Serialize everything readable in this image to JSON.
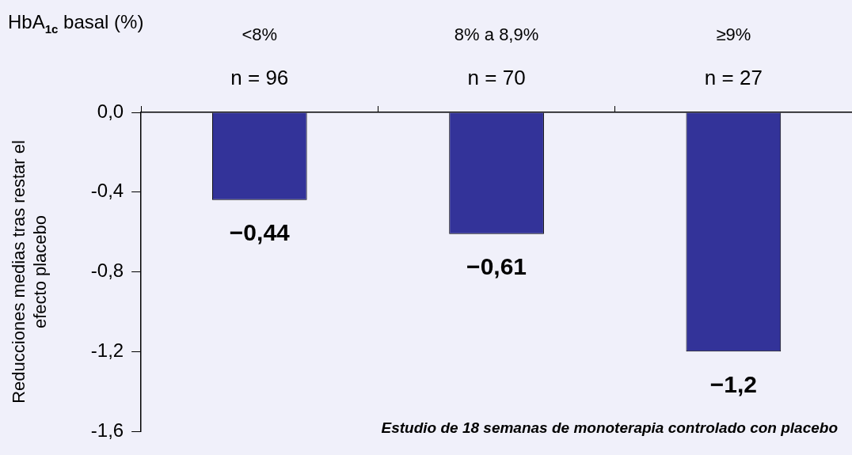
{
  "chart_data": {
    "type": "bar",
    "xlabel": "HbA$_{1c}$ basal (%)",
    "ylabel": "Reducciones medias tras restar el efecto placebo",
    "categories": [
      "<8%",
      "8% a 8,9%",
      "≥9%"
    ],
    "values": [
      -0.44,
      -0.61,
      -1.2
    ],
    "value_labels": [
      "−0,44",
      "−0,61",
      "−1,2"
    ],
    "color": "#333399",
    "ylim": [
      -1.6,
      0
    ],
    "yticks": [
      {
        "value": 0,
        "label": "0,0"
      },
      {
        "value": -0.4,
        "label": "-0,4"
      },
      {
        "value": -0.8,
        "label": "-0,8"
      },
      {
        "value": -1.2,
        "label": "-1,2"
      },
      {
        "value": -1.6,
        "label": "-1,6"
      }
    ],
    "annotations": [
      {
        "text": "n = 96",
        "x": "<8%",
        "y": 0
      },
      {
        "text": "n = 70",
        "x": "8% a 8,9%",
        "y": 0
      },
      {
        "text": "n = 27",
        "x": "≥9%",
        "y": 0
      },
      "Estudio de 18 semanas de monoterapia controlado con placebo"
    ]
  }
}
